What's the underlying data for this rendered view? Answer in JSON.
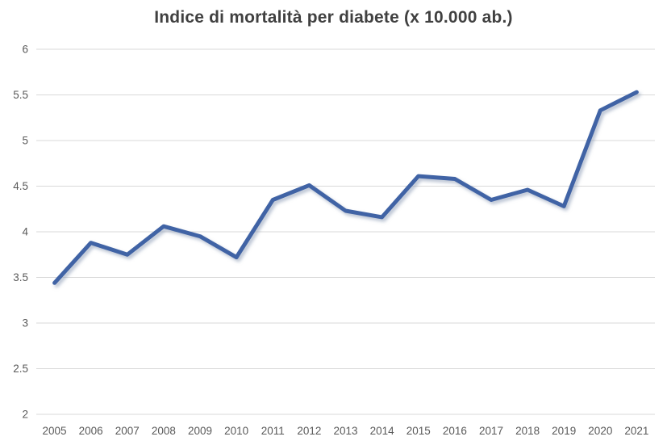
{
  "chart_data": {
    "type": "line",
    "title": "Indice di mortalità per diabete (x 10.000 ab.)",
    "categories": [
      "2005",
      "2006",
      "2007",
      "2008",
      "2009",
      "2010",
      "2011",
      "2012",
      "2013",
      "2014",
      "2015",
      "2016",
      "2017",
      "2018",
      "2019",
      "2020",
      "2021"
    ],
    "series": [
      {
        "name": "Indice di mortalità per diabete",
        "values": [
          3.44,
          3.88,
          3.75,
          4.06,
          3.95,
          3.72,
          4.35,
          4.51,
          4.23,
          4.16,
          4.61,
          4.58,
          4.35,
          4.46,
          4.28,
          5.33,
          5.53
        ]
      }
    ],
    "xlabel": "",
    "ylabel": "",
    "ylim": [
      2,
      6
    ],
    "yticks": [
      2,
      2.5,
      3,
      3.5,
      4,
      4.5,
      5,
      5.5,
      6
    ],
    "grid": "horizontal",
    "legend_position": "none",
    "colors": {
      "line": "#3F63A5",
      "line_shadow": "#8c9bb5",
      "gridline": "#d9d9d9",
      "title_text": "#404040",
      "tick_text": "#595959",
      "background": "#ffffff"
    }
  }
}
